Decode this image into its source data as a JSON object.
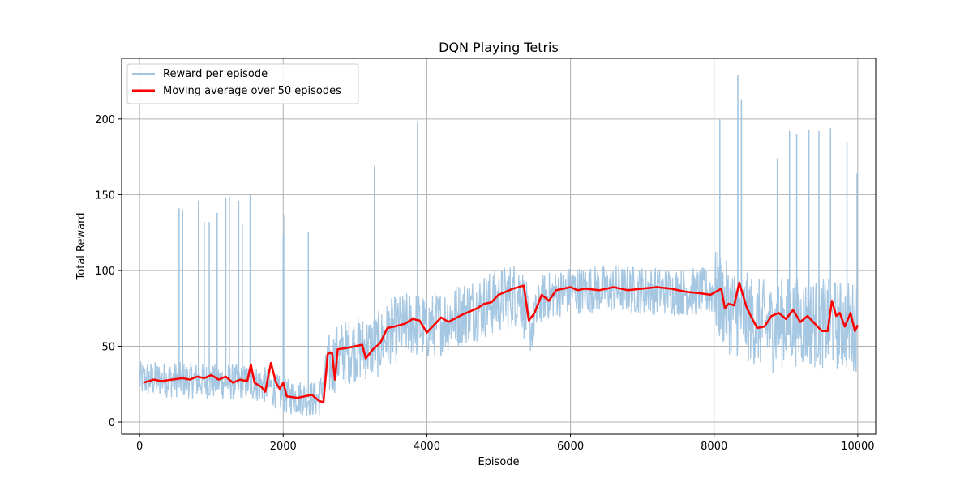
{
  "chart_data": {
    "type": "line",
    "title": "DQN Playing Tetris",
    "xlabel": "Episode",
    "ylabel": "Total Reward",
    "xlim": [
      -250,
      10250
    ],
    "ylim": [
      -8,
      240
    ],
    "xticks": [
      0,
      2000,
      4000,
      6000,
      8000,
      10000
    ],
    "yticks": [
      0,
      50,
      100,
      150,
      200
    ],
    "grid": true,
    "legend_position": "top-left",
    "series": [
      {
        "name": "Reward per episode",
        "color": "#a1c4e0",
        "description_points": [
          [
            0,
            28
          ],
          [
            500,
            28
          ],
          [
            1000,
            27
          ],
          [
            1500,
            26
          ],
          [
            1800,
            24
          ],
          [
            2000,
            17
          ],
          [
            2300,
            16
          ],
          [
            2500,
            15
          ],
          [
            2600,
            35
          ],
          [
            2800,
            45
          ],
          [
            3000,
            48
          ],
          [
            3300,
            50
          ],
          [
            3500,
            60
          ],
          [
            3800,
            65
          ],
          [
            4000,
            62
          ],
          [
            4500,
            72
          ],
          [
            5000,
            80
          ],
          [
            5300,
            86
          ],
          [
            5450,
            60
          ],
          [
            5600,
            82
          ],
          [
            6000,
            87
          ],
          [
            6500,
            88
          ],
          [
            7000,
            87
          ],
          [
            7500,
            86
          ],
          [
            8000,
            86
          ],
          [
            8200,
            75
          ],
          [
            8500,
            68
          ],
          [
            8800,
            62
          ],
          [
            9000,
            67
          ],
          [
            9500,
            65
          ],
          [
            10000,
            63
          ]
        ],
        "spikes": [
          [
            550,
            141
          ],
          [
            600,
            140
          ],
          [
            820,
            146
          ],
          [
            900,
            132
          ],
          [
            970,
            132
          ],
          [
            1080,
            138
          ],
          [
            1200,
            148
          ],
          [
            1250,
            149
          ],
          [
            1380,
            146
          ],
          [
            1430,
            130
          ],
          [
            1540,
            150
          ],
          [
            2000,
            124
          ],
          [
            2020,
            137
          ],
          [
            2350,
            125
          ],
          [
            3270,
            169
          ],
          [
            3870,
            198
          ],
          [
            8080,
            200
          ],
          [
            8330,
            229
          ],
          [
            8380,
            213
          ],
          [
            8880,
            174
          ],
          [
            9050,
            192
          ],
          [
            9150,
            190
          ],
          [
            9320,
            193
          ],
          [
            9460,
            192
          ],
          [
            9620,
            194
          ],
          [
            9850,
            185
          ],
          [
            9990,
            164
          ]
        ]
      },
      {
        "name": "Moving average over 50 episodes",
        "color": "#ff0000",
        "points": [
          [
            50,
            26
          ],
          [
            200,
            28
          ],
          [
            300,
            27
          ],
          [
            450,
            28
          ],
          [
            600,
            29
          ],
          [
            700,
            28
          ],
          [
            800,
            30
          ],
          [
            900,
            29
          ],
          [
            1000,
            31
          ],
          [
            1100,
            28
          ],
          [
            1200,
            30
          ],
          [
            1300,
            26
          ],
          [
            1400,
            28
          ],
          [
            1500,
            27
          ],
          [
            1550,
            38
          ],
          [
            1600,
            26
          ],
          [
            1700,
            23
          ],
          [
            1750,
            20
          ],
          [
            1830,
            39
          ],
          [
            1900,
            26
          ],
          [
            1950,
            22
          ],
          [
            2000,
            26
          ],
          [
            2050,
            17
          ],
          [
            2200,
            16
          ],
          [
            2300,
            17
          ],
          [
            2400,
            18
          ],
          [
            2500,
            14
          ],
          [
            2560,
            13
          ],
          [
            2620,
            45
          ],
          [
            2680,
            46
          ],
          [
            2720,
            28
          ],
          [
            2760,
            48
          ],
          [
            2900,
            49
          ],
          [
            3000,
            50
          ],
          [
            3100,
            51
          ],
          [
            3150,
            42
          ],
          [
            3250,
            48
          ],
          [
            3350,
            52
          ],
          [
            3450,
            62
          ],
          [
            3550,
            63
          ],
          [
            3700,
            65
          ],
          [
            3800,
            68
          ],
          [
            3900,
            67
          ],
          [
            4000,
            59
          ],
          [
            4100,
            64
          ],
          [
            4200,
            69
          ],
          [
            4300,
            66
          ],
          [
            4500,
            71
          ],
          [
            4600,
            73
          ],
          [
            4700,
            75
          ],
          [
            4800,
            78
          ],
          [
            4900,
            79
          ],
          [
            5000,
            84
          ],
          [
            5100,
            86
          ],
          [
            5200,
            88
          ],
          [
            5350,
            90
          ],
          [
            5420,
            67
          ],
          [
            5500,
            72
          ],
          [
            5600,
            84
          ],
          [
            5700,
            80
          ],
          [
            5800,
            87
          ],
          [
            6000,
            89
          ],
          [
            6100,
            87
          ],
          [
            6200,
            88
          ],
          [
            6400,
            87
          ],
          [
            6600,
            89
          ],
          [
            6800,
            87
          ],
          [
            7000,
            88
          ],
          [
            7200,
            89
          ],
          [
            7400,
            88
          ],
          [
            7600,
            86
          ],
          [
            7800,
            85
          ],
          [
            7950,
            84
          ],
          [
            8100,
            88
          ],
          [
            8150,
            75
          ],
          [
            8200,
            78
          ],
          [
            8280,
            77
          ],
          [
            8350,
            92
          ],
          [
            8450,
            76
          ],
          [
            8500,
            71
          ],
          [
            8600,
            62
          ],
          [
            8700,
            63
          ],
          [
            8800,
            70
          ],
          [
            8900,
            72
          ],
          [
            9000,
            68
          ],
          [
            9100,
            74
          ],
          [
            9200,
            66
          ],
          [
            9300,
            70
          ],
          [
            9400,
            65
          ],
          [
            9500,
            60
          ],
          [
            9580,
            60
          ],
          [
            9640,
            80
          ],
          [
            9700,
            70
          ],
          [
            9750,
            72
          ],
          [
            9820,
            63
          ],
          [
            9900,
            72
          ],
          [
            9960,
            60
          ],
          [
            10000,
            64
          ]
        ]
      }
    ]
  }
}
